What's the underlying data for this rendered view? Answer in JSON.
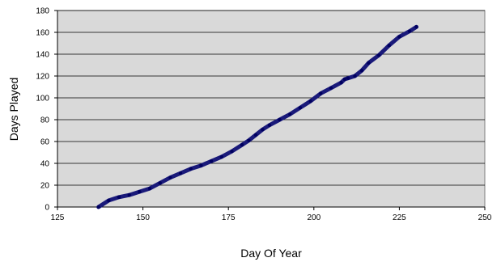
{
  "chart_data": {
    "type": "line",
    "title": "",
    "xlabel": "Day Of Year",
    "ylabel": "Days Played",
    "xlim": [
      125,
      250
    ],
    "ylim": [
      0,
      180
    ],
    "xticks": [
      125,
      150,
      175,
      200,
      225,
      250
    ],
    "yticks": [
      0,
      20,
      40,
      60,
      80,
      100,
      120,
      140,
      160,
      180
    ],
    "grid": "horizontal",
    "legend": "none",
    "colors": {
      "line": "#1a1a7a",
      "plot_bg": "#d9d9d9",
      "grid": "#000000",
      "page_bg": "#ffffff"
    },
    "series": [
      {
        "x": [
          137,
          140,
          143,
          146,
          149,
          152,
          155,
          158,
          161,
          164,
          167,
          170,
          173,
          176,
          179,
          181,
          183,
          185,
          187,
          190,
          193,
          196,
          199,
          202,
          205,
          208,
          209,
          210,
          212,
          214,
          216,
          219,
          222,
          225,
          228,
          230
        ],
        "values": [
          0,
          6,
          9,
          11,
          14,
          17,
          22,
          27,
          31,
          35,
          38,
          42,
          46,
          51,
          57,
          61,
          66,
          71,
          75,
          80,
          85,
          91,
          97,
          104,
          109,
          114,
          117,
          118,
          120,
          125,
          132,
          139,
          148,
          156,
          161,
          165
        ]
      }
    ]
  }
}
